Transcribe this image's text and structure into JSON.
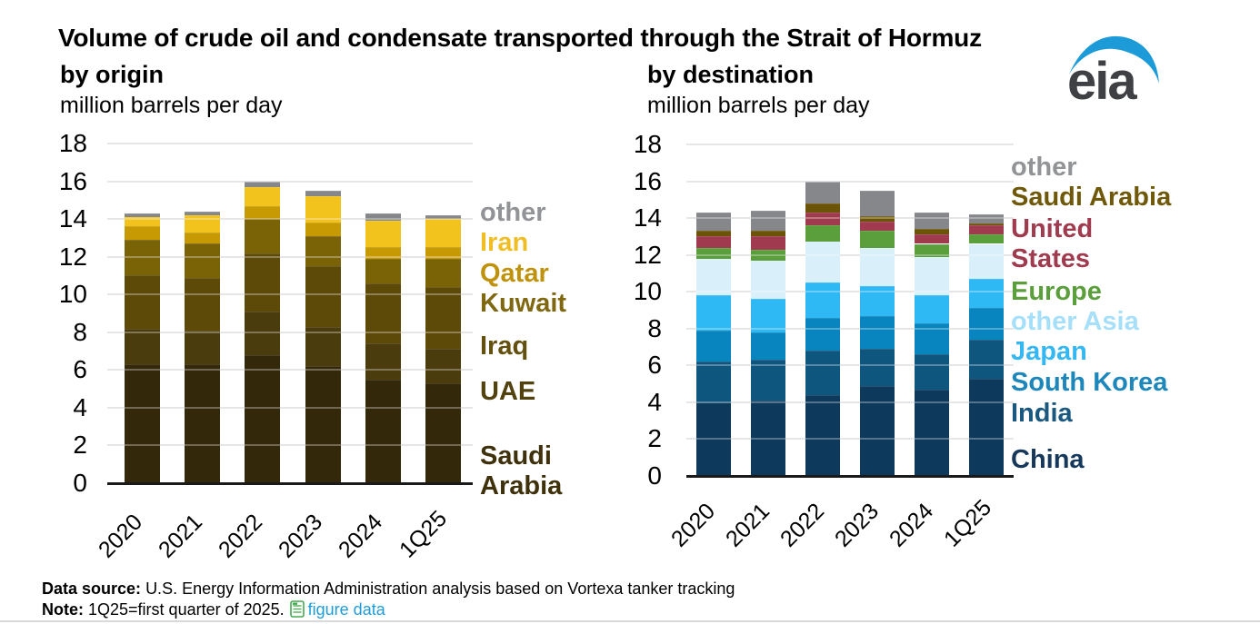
{
  "title": "Volume of crude oil and condensate transported through the Strait of Hormuz",
  "logo": {
    "text": "eia",
    "swoosh_color": "#1C9BD8",
    "text_color": "#3E4044"
  },
  "footer": {
    "data_source_label": "Data source:",
    "data_source_text": "U.S. Energy Information Administration analysis based on Vortexa tanker tracking",
    "note_label": "Note:",
    "note_text": "1Q25=first quarter of 2025.",
    "link_text": "figure data",
    "link_color": "#1E9CD9",
    "doc_icon": "spreadsheet-icon",
    "doc_icon_color": "#44A94F"
  },
  "chart_data": [
    {
      "type": "bar",
      "stacked": true,
      "title": "by origin",
      "ylabel": "million barrels per day",
      "xlabel": "",
      "ylim": [
        0,
        18
      ],
      "ytick_step": 2,
      "grid": true,
      "legend_position": "right",
      "categories": [
        "2020",
        "2021",
        "2022",
        "2023",
        "2024",
        "1Q25"
      ],
      "series": [
        {
          "name": "Saudi Arabia",
          "color": "#33280A",
          "legend_color": "#3E310C",
          "legend_lines": [
            "Saudi",
            "Arabia"
          ],
          "values": [
            6.3,
            6.3,
            6.8,
            6.2,
            5.5,
            5.3
          ]
        },
        {
          "name": "UAE",
          "color": "#4B3C0E",
          "legend_color": "#52420F",
          "legend_lines": [
            "UAE"
          ],
          "values": [
            1.9,
            1.8,
            2.3,
            2.1,
            1.9,
            1.8
          ]
        },
        {
          "name": "Iraq",
          "color": "#5D4A09",
          "legend_color": "#64500E",
          "legend_lines": [
            "Iraq"
          ],
          "values": [
            2.8,
            2.8,
            3.1,
            3.2,
            3.2,
            3.3
          ]
        },
        {
          "name": "Kuwait",
          "color": "#7A6207",
          "legend_color": "#806811",
          "legend_lines": [
            "Kuwait"
          ],
          "values": [
            1.9,
            1.8,
            1.8,
            1.6,
            1.3,
            1.5
          ]
        },
        {
          "name": "Qatar",
          "color": "#C79A04",
          "legend_color": "#C0920B",
          "legend_lines": [
            "Qatar"
          ],
          "values": [
            0.7,
            0.6,
            0.7,
            0.7,
            0.6,
            0.6
          ]
        },
        {
          "name": "Iran",
          "color": "#F2C21D",
          "legend_color": "#F0BE24",
          "legend_lines": [
            "Iran"
          ],
          "values": [
            0.5,
            0.9,
            1.0,
            1.4,
            1.4,
            1.5
          ]
        },
        {
          "name": "other",
          "color": "#85878A",
          "legend_color": "#919396",
          "legend_lines": [
            "other"
          ],
          "values": [
            0.2,
            0.2,
            0.3,
            0.3,
            0.4,
            0.2
          ]
        }
      ]
    },
    {
      "type": "bar",
      "stacked": true,
      "title": "by destination",
      "ylabel": "million barrels per day",
      "xlabel": "",
      "ylim": [
        0,
        18
      ],
      "ytick_step": 2,
      "grid": true,
      "legend_position": "right",
      "categories": [
        "2020",
        "2021",
        "2022",
        "2023",
        "2024",
        "1Q25"
      ],
      "series": [
        {
          "name": "China",
          "color": "#0D3A5C",
          "legend_color": "#16395B",
          "legend_lines": [
            "China"
          ],
          "values": [
            4.0,
            4.1,
            4.4,
            4.9,
            4.7,
            5.3
          ]
        },
        {
          "name": "India",
          "color": "#0E567E",
          "legend_color": "#1A5880",
          "legend_lines": [
            "India"
          ],
          "values": [
            2.2,
            2.2,
            2.4,
            2.0,
            1.9,
            2.1
          ]
        },
        {
          "name": "South Korea",
          "color": "#0884BE",
          "legend_color": "#1D87BC",
          "legend_lines": [
            "South Korea"
          ],
          "values": [
            1.7,
            1.5,
            1.8,
            1.8,
            1.7,
            1.7
          ]
        },
        {
          "name": "Japan",
          "color": "#2EB8F4",
          "legend_color": "#35B7F2",
          "legend_lines": [
            "Japan"
          ],
          "values": [
            1.9,
            1.8,
            1.9,
            1.6,
            1.5,
            1.6
          ]
        },
        {
          "name": "other Asia",
          "color": "#D9F0FB",
          "legend_color": "#A5DFF9",
          "legend_lines": [
            "other Asia"
          ],
          "values": [
            2.0,
            2.1,
            2.2,
            2.1,
            2.1,
            1.9
          ]
        },
        {
          "name": "Europe",
          "color": "#5B9E3C",
          "legend_color": "#5B9E3C",
          "legend_lines": [
            "Europe"
          ],
          "values": [
            0.6,
            0.6,
            0.9,
            0.9,
            0.7,
            0.5
          ]
        },
        {
          "name": "United States",
          "color": "#A03B4F",
          "legend_color": "#A03B4F",
          "legend_lines": [
            "United",
            "States"
          ],
          "values": [
            0.6,
            0.7,
            0.7,
            0.5,
            0.5,
            0.5
          ]
        },
        {
          "name": "Saudi Arabia",
          "color": "#6B5408",
          "legend_color": "#6F5909",
          "legend_lines": [
            "Saudi Arabia"
          ],
          "values": [
            0.3,
            0.3,
            0.5,
            0.3,
            0.3,
            0.1
          ]
        },
        {
          "name": "other",
          "color": "#85878A",
          "legend_color": "#919396",
          "legend_lines": [
            "other"
          ],
          "values": [
            1.0,
            1.1,
            1.2,
            1.4,
            0.9,
            0.5
          ]
        }
      ]
    }
  ]
}
